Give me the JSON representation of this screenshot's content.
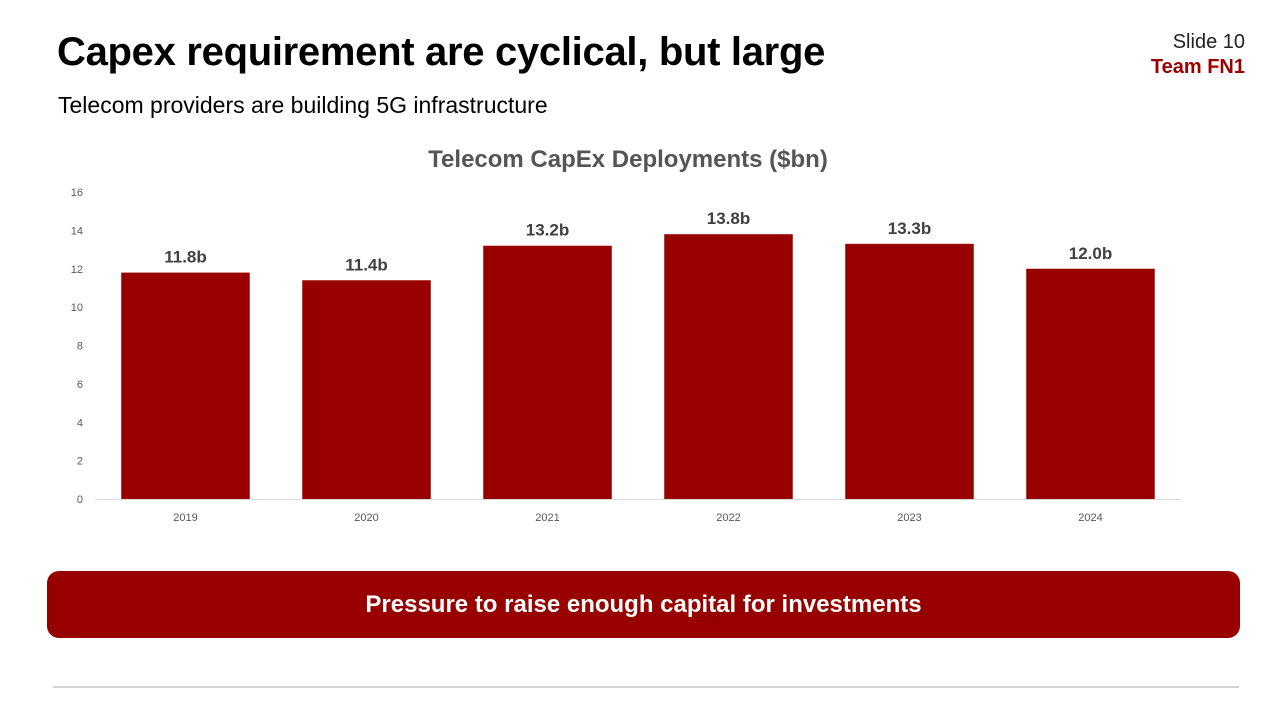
{
  "slide": {
    "title": "Capex requirement are cyclical, but large",
    "subtitle": "Telecom providers are building 5G infrastructure",
    "slide_number": "Slide 10",
    "team": "Team FN1",
    "callout": "Pressure to raise enough capital for investments"
  },
  "colors": {
    "accent": "#980000",
    "team_text": "#9a0000",
    "axis_text": "#595959",
    "label_text": "#404040"
  },
  "chart_data": {
    "type": "bar",
    "title": "Telecom CapEx Deployments ($bn)",
    "xlabel": "",
    "ylabel": "",
    "categories": [
      "2019",
      "2020",
      "2021",
      "2022",
      "2023",
      "2024"
    ],
    "values": [
      11.8,
      11.4,
      13.2,
      13.8,
      13.3,
      12.0
    ],
    "data_labels": [
      "11.8b",
      "11.4b",
      "13.2b",
      "13.8b",
      "13.3b",
      "12.0b"
    ],
    "ylim": [
      0,
      16
    ],
    "yticks": [
      0,
      2,
      4,
      6,
      8,
      10,
      12,
      14,
      16
    ],
    "grid": false,
    "legend": "none"
  }
}
